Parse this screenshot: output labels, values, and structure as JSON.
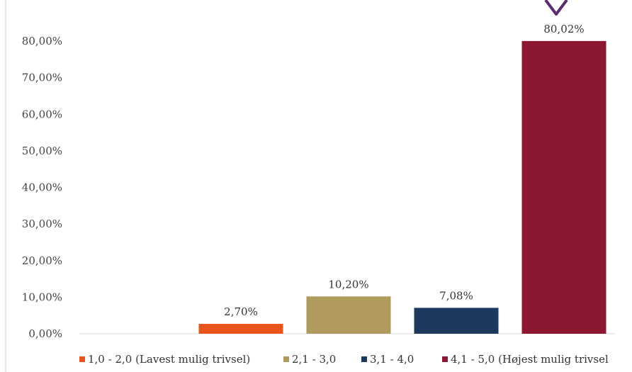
{
  "chart_data": {
    "type": "bar",
    "categories": [
      "1,0 - 2,0 (Lavest mulig trivsel)",
      "2,1 - 3,0",
      "3,1 - 4,0",
      "4,1 - 5,0 (Højest mulig trivsel"
    ],
    "values": [
      2.7,
      10.2,
      7.08,
      80.02
    ],
    "data_labels": [
      "2,70%",
      "10,20%",
      "7,08%",
      "80,02%"
    ],
    "colors": [
      "#E8541C",
      "#B09A5C",
      "#1B3A5E",
      "#8B1731"
    ],
    "ylim": [
      0,
      80
    ],
    "yticks": [
      "0,00%",
      "10,00%",
      "20,00%",
      "30,00%",
      "40,00%",
      "50,00%",
      "60,00%",
      "70,00%",
      "80,00%"
    ],
    "grid": false,
    "legend_position": "bottom",
    "accent_mark_color": "#5B2C6F",
    "title": "",
    "xlabel": "",
    "ylabel": ""
  }
}
